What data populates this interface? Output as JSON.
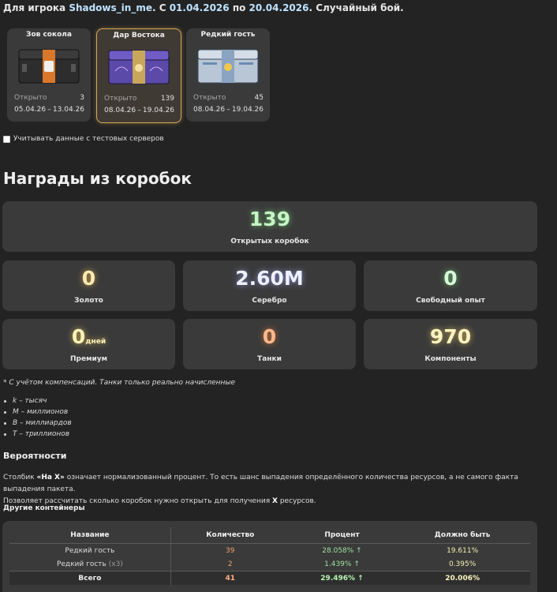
{
  "header": {
    "prefix": "Для игрока",
    "player": "Shadows_in_me",
    "mid": ". С",
    "from": "01.04.2026",
    "to_word": "по",
    "to": "20.04.2026",
    "suffix": ". Случайный бой."
  },
  "boxes": [
    {
      "name": "Зов сокола",
      "opened_label": "Открыто",
      "count": "3",
      "date_from": "05.04.26",
      "dash": "–",
      "date_to": "13.04.26",
      "image": "orange-black-crate",
      "selected": false
    },
    {
      "name": "Дар Востока",
      "opened_label": "Открыто",
      "count": "139",
      "date_from": "08.04.26",
      "dash": "–",
      "date_to": "19.04.26",
      "image": "purple-crate",
      "selected": true
    },
    {
      "name": "Редкий гость",
      "opened_label": "Открыто",
      "count": "45",
      "date_from": "08.04.26",
      "dash": "–",
      "date_to": "19.04.26",
      "image": "silver-blue-crate",
      "selected": false
    }
  ],
  "test_servers_label": "Учитывать данные с тестовых серверов",
  "rewards": {
    "title": "Награды из коробок",
    "opened": {
      "value": "139",
      "caption": "Открытых коробок",
      "color": "#c6f5c6"
    },
    "gold": {
      "value": "0",
      "caption": "Золото",
      "color": "#ffe9b0"
    },
    "silver": {
      "value": "2.60M",
      "caption": "Серебро",
      "color": "#eef0ff"
    },
    "free_xp": {
      "value": "0",
      "caption": "Свободный опыт",
      "color": "#d6f8d6"
    },
    "premium": {
      "value": "0",
      "unit": "дней",
      "caption": "Премиум",
      "color": "#fff1b8"
    },
    "tanks": {
      "value": "0",
      "caption": "Танки",
      "color": "#ffb98a"
    },
    "components": {
      "value": "970",
      "caption": "Компоненты",
      "color": "#fff3c0"
    }
  },
  "note": "* С учётом компенсаций. Танки только реально начисленные",
  "legend": [
    "k – тысяч",
    "M – миллионов",
    "B – миллиардов",
    "T – триллионов"
  ],
  "probabilities": {
    "title": "Вероятности",
    "text_a": "Столбик",
    "text_b": "«На X»",
    "text_c": "означает нормализованный процент. То есть шанс выпадения определённого количества ресурсов, а не самого факта выпадения пакета.",
    "text_d": "Позволяет рассчитать сколько коробок нужно открыть для получения",
    "text_e": "X",
    "text_f": "ресурсов."
  },
  "other": {
    "title": "Другие контейнеры",
    "columns": [
      "Название",
      "Количество",
      "Процент",
      "Должно быть"
    ],
    "rows": [
      {
        "name": "Редкий гость",
        "extra": "",
        "qty": "39",
        "pct": "28.058% ↑",
        "must": "19.611%"
      },
      {
        "name": "Редкий гость",
        "extra": "(x3)",
        "qty": "2",
        "pct": "1.439% ↑",
        "must": "0.395%"
      }
    ],
    "total": {
      "name": "Всего",
      "qty": "41",
      "pct": "29.496% ↑",
      "must": "20.006%"
    }
  }
}
